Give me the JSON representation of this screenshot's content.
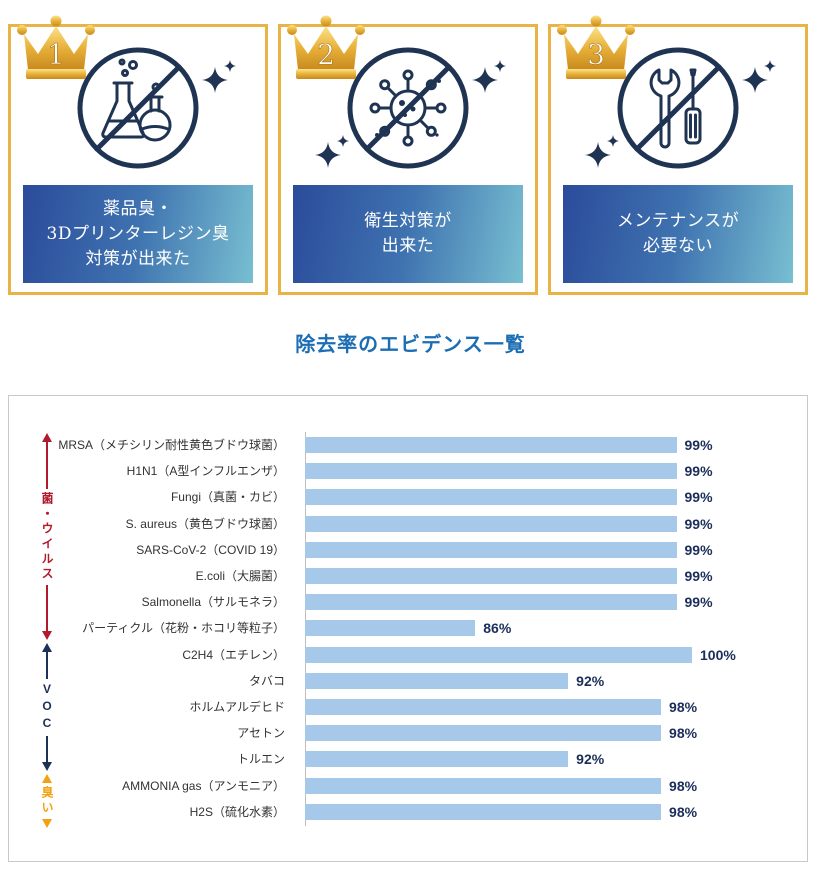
{
  "cards": [
    {
      "rank": "1",
      "icon": "flask-icon",
      "lines": [
        "薬品臭・",
        "3Dプリンターレジン臭",
        "対策が出来た"
      ]
    },
    {
      "rank": "2",
      "icon": "virus-icon",
      "lines": [
        "衛生対策が",
        "出来た"
      ]
    },
    {
      "rank": "3",
      "icon": "tools-icon",
      "lines": [
        "メンテナンスが",
        "必要ない"
      ]
    }
  ],
  "heading": "除去率のエビデンス一覧",
  "colors": {
    "card_border": "#e9b447",
    "crown_gold": "#e8b13a",
    "icon_navy": "#1f3352",
    "caption_gradient_start": "#2b4b9b",
    "caption_gradient_end": "#78bfd1",
    "heading": "#1b6db4",
    "bar": "#a6c9ea",
    "value_label": "#1b2d59"
  },
  "chart_data": {
    "type": "bar",
    "orientation": "horizontal",
    "categories": [
      "MRSA（メチシリン耐性黄色ブドウ球菌）",
      "H1N1（A型インフルエンザ）",
      "Fungi（真菌・カビ）",
      "S. aureus（黄色ブドウ球菌）",
      "SARS-CoV-2（COVID 19）",
      "E.coli（大腸菌）",
      "Salmonella（サルモネラ）",
      "パーティクル（花粉・ホコリ等粒子）",
      "C2H4（エチレン）",
      "タバコ",
      "ホルムアルデヒド",
      "アセトン",
      "トルエン",
      "AMMONIA gas（アンモニア）",
      "H2S（硫化水素）"
    ],
    "values": [
      99,
      99,
      99,
      99,
      99,
      99,
      99,
      86,
      100,
      92,
      98,
      98,
      92,
      98,
      98
    ],
    "data_labels": [
      "99%",
      "99%",
      "99%",
      "99%",
      "99%",
      "99%",
      "99%",
      "86%",
      "100%",
      "92%",
      "98%",
      "98%",
      "92%",
      "98%",
      "98%"
    ],
    "xlim": [
      75,
      100
    ],
    "grid": false,
    "groups": [
      {
        "label": "菌・ウイルス",
        "first": 0,
        "last": 7,
        "color": "#b11a2b"
      },
      {
        "label": "VOC",
        "first": 8,
        "last": 12,
        "color": "#1d3157"
      },
      {
        "label": "臭い",
        "first": 13,
        "last": 14,
        "color": "#f2a114"
      }
    ]
  }
}
